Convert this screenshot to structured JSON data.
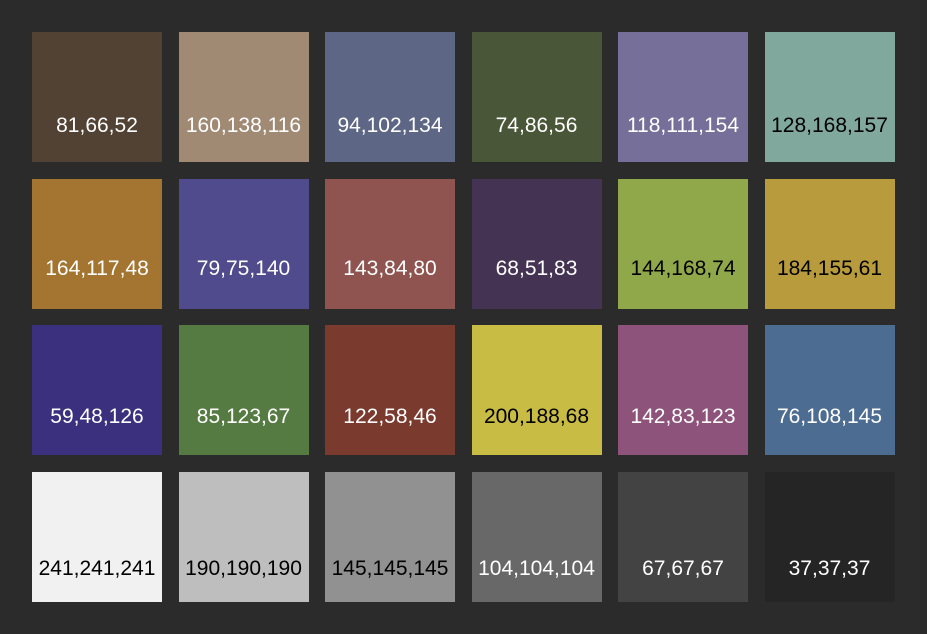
{
  "background": "#2b2b2b",
  "swatches": [
    {
      "label": "81,66,52",
      "color": "#514234",
      "text_color": "#ffffff"
    },
    {
      "label": "160,138,116",
      "color": "#a08a74",
      "text_color": "#ffffff"
    },
    {
      "label": "94,102,134",
      "color": "#5e6686",
      "text_color": "#ffffff"
    },
    {
      "label": "74,86,56",
      "color": "#4a5638",
      "text_color": "#ffffff"
    },
    {
      "label": "118,111,154",
      "color": "#766f9a",
      "text_color": "#ffffff"
    },
    {
      "label": "128,168,157",
      "color": "#80a89d",
      "text_color": "#000000"
    },
    {
      "label": "164,117,48",
      "color": "#a47530",
      "text_color": "#ffffff"
    },
    {
      "label": "79,75,140",
      "color": "#4f4b8c",
      "text_color": "#ffffff"
    },
    {
      "label": "143,84,80",
      "color": "#8f5450",
      "text_color": "#ffffff"
    },
    {
      "label": "68,51,83",
      "color": "#443353",
      "text_color": "#ffffff"
    },
    {
      "label": "144,168,74",
      "color": "#90a84a",
      "text_color": "#000000"
    },
    {
      "label": "184,155,61",
      "color": "#b89b3d",
      "text_color": "#000000"
    },
    {
      "label": "59,48,126",
      "color": "#3b307e",
      "text_color": "#ffffff"
    },
    {
      "label": "85,123,67",
      "color": "#557b43",
      "text_color": "#ffffff"
    },
    {
      "label": "122,58,46",
      "color": "#7a3a2e",
      "text_color": "#ffffff"
    },
    {
      "label": "200,188,68",
      "color": "#c8bc44",
      "text_color": "#000000"
    },
    {
      "label": "142,83,123",
      "color": "#8e537b",
      "text_color": "#ffffff"
    },
    {
      "label": "76,108,145",
      "color": "#4c6c91",
      "text_color": "#ffffff"
    },
    {
      "label": "241,241,241",
      "color": "#f1f1f1",
      "text_color": "#000000"
    },
    {
      "label": "190,190,190",
      "color": "#bebebe",
      "text_color": "#000000"
    },
    {
      "label": "145,145,145",
      "color": "#919191",
      "text_color": "#000000"
    },
    {
      "label": "104,104,104",
      "color": "#686868",
      "text_color": "#ffffff"
    },
    {
      "label": "67,67,67",
      "color": "#434343",
      "text_color": "#ffffff"
    },
    {
      "label": "37,37,37",
      "color": "#252525",
      "text_color": "#ffffff"
    }
  ]
}
